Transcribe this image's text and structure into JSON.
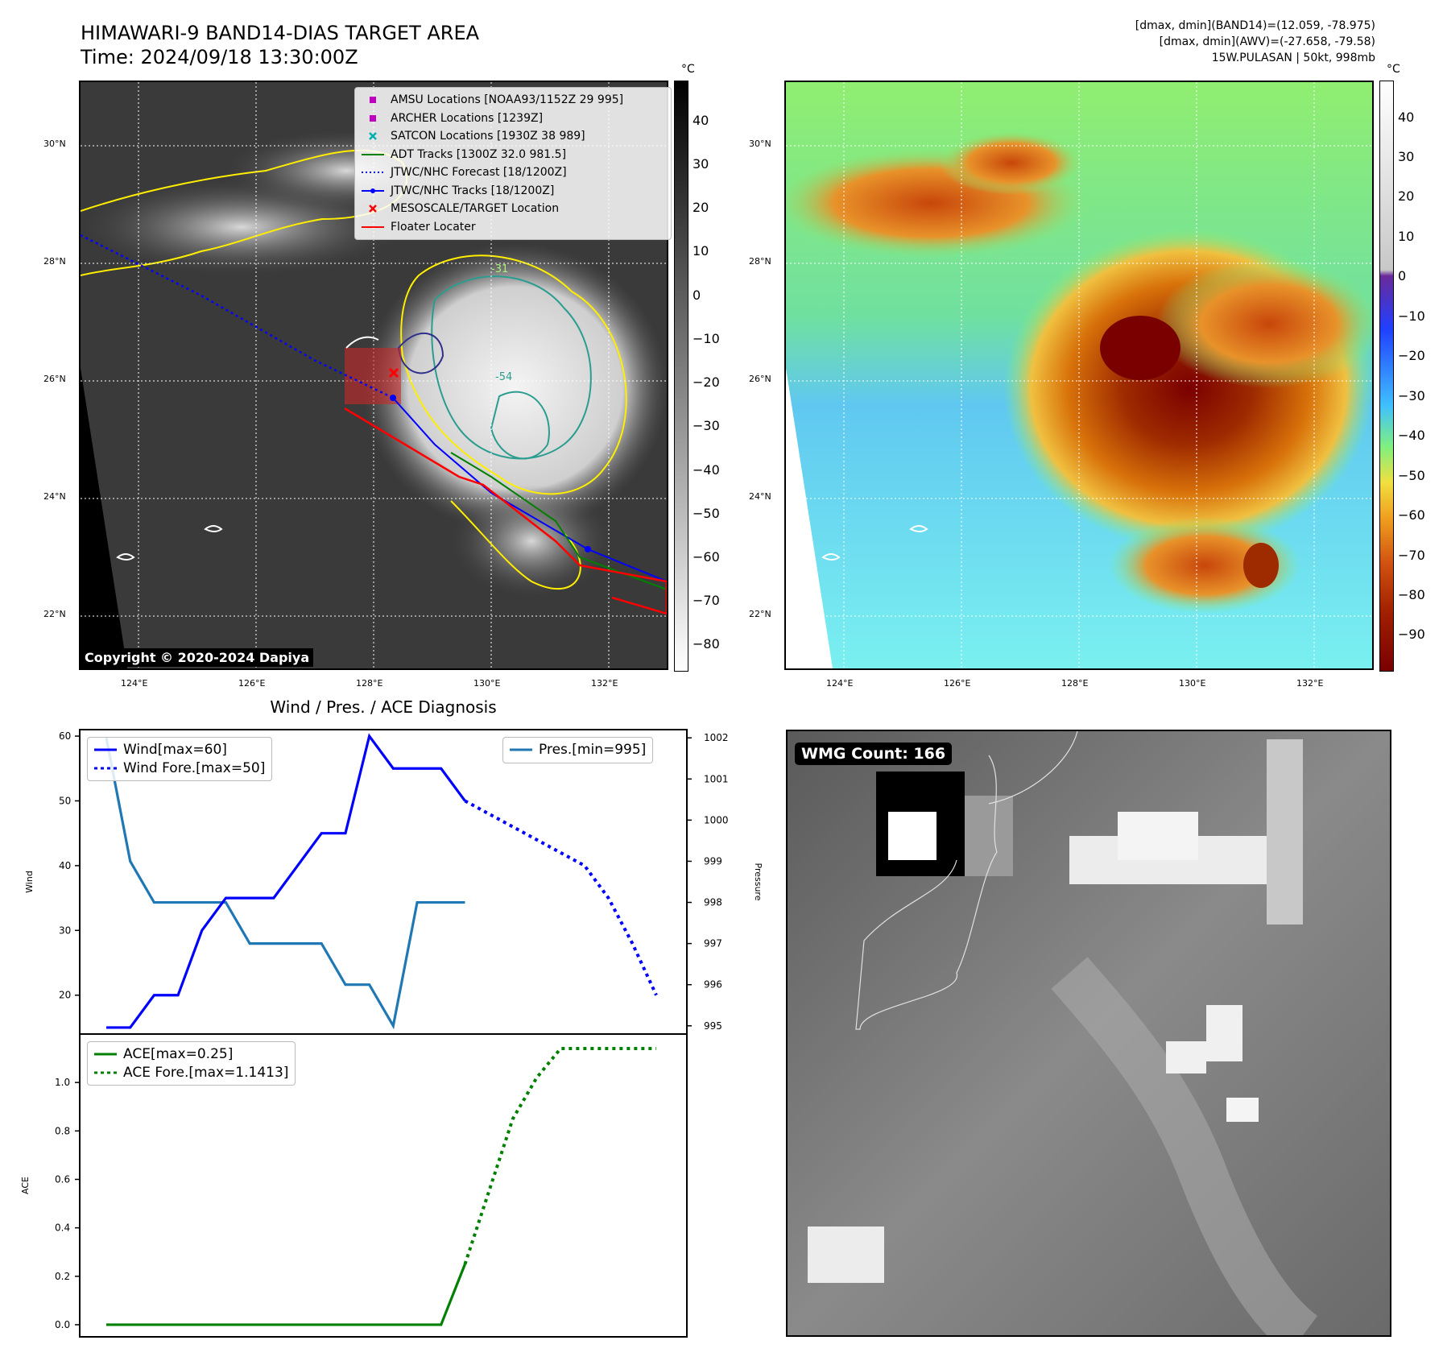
{
  "header": {
    "title_line1": "HIMAWARI-9 BAND14-DIAS TARGET AREA",
    "title_line2": "Time: 2024/09/18 13:30:00Z",
    "info_line1": "[dmax, dmin](BAND14)=(12.059, -78.975)",
    "info_line2": "[dmax, dmin](AWV)=(-27.658, -79.58)",
    "info_line3": "15W.PULASAN | 50kt, 998mb"
  },
  "map": {
    "lat_labels": [
      "30°N",
      "28°N",
      "26°N",
      "24°N",
      "22°N"
    ],
    "lon_labels": [
      "124°E",
      "126°E",
      "128°E",
      "130°E",
      "132°E"
    ],
    "copyright": "Copyright © 2020-2024 Dapiya",
    "contour_label": "-31"
  },
  "legend_ir": [
    {
      "label": "AMSU Locations [NOAA93/1152Z 29 995]",
      "color": "#c000c0",
      "kind": "square"
    },
    {
      "label": "ARCHER Locations [1239Z]",
      "color": "#c000c0",
      "kind": "square"
    },
    {
      "label": "SATCON Locations [1930Z 38 989]",
      "color": "#00b0b0",
      "kind": "x"
    },
    {
      "label": "ADT Tracks [1300Z 32.0 981.5]",
      "color": "#008000",
      "kind": "line"
    },
    {
      "label": "JTWC/NHC Forecast [18/1200Z]",
      "color": "#0000ff",
      "kind": "dotted"
    },
    {
      "label": "JTWC/NHC Tracks [18/1200Z]",
      "color": "#0000ff",
      "kind": "dotline"
    },
    {
      "label": "MESOSCALE/TARGET Location",
      "color": "#ff0000",
      "kind": "x"
    },
    {
      "label": "Floater Locater",
      "color": "#ff0000",
      "kind": "line"
    }
  ],
  "colorbar_ir": {
    "unit": "°C",
    "ticks": [
      "40",
      "30",
      "20",
      "10",
      "0",
      "−10",
      "−20",
      "−30",
      "−40",
      "−50",
      "−60",
      "−70",
      "−80"
    ]
  },
  "colorbar_enh": {
    "unit": "°C",
    "ticks": [
      "40",
      "30",
      "20",
      "10",
      "0",
      "−10",
      "−20",
      "−30",
      "−40",
      "−50",
      "−60",
      "−70",
      "−80",
      "−90"
    ]
  },
  "diag": {
    "title": "Wind / Pres. / ACE Diagnosis",
    "wind_axis_label": "Wind",
    "pres_axis_label": "Pressure",
    "ace_axis_label": "ACE",
    "wind_ticks": [
      "60",
      "50",
      "40",
      "30",
      "20"
    ],
    "pres_ticks": [
      "1002",
      "1001",
      "1000",
      "999",
      "998",
      "997",
      "996",
      "995"
    ],
    "ace_ticks": [
      "1.0",
      "0.8",
      "0.6",
      "0.4",
      "0.2",
      "0.0"
    ],
    "legend_wind": "Wind[max=60]",
    "legend_wind_fore": "Wind Fore.[max=50]",
    "legend_pres": "Pres.[min=995]",
    "legend_ace": "ACE[max=0.25]",
    "legend_ace_fore": "ACE Fore.[max=1.1413]"
  },
  "wmg": {
    "label": "WMG Count: 166"
  },
  "colors": {
    "wind": "#0000ff",
    "pres": "#1f77b4",
    "ace": "#008000",
    "floater": "#ff0000"
  },
  "chart_data": [
    {
      "type": "line",
      "title": "Wind / Pres. / ACE Diagnosis",
      "ylabel": "Wind",
      "ylim": [
        14,
        61
      ],
      "series": [
        {
          "name": "Wind[max=60]",
          "x": [
            0,
            1,
            2,
            3,
            4,
            5,
            6,
            7,
            8,
            9,
            10,
            11,
            12,
            13,
            14,
            15
          ],
          "values": [
            15,
            15,
            20,
            20,
            30,
            35,
            35,
            35,
            40,
            45,
            45,
            60,
            55,
            55,
            55,
            50
          ]
        },
        {
          "name": "Wind Fore.[max=50]",
          "x": [
            15,
            16,
            17,
            18,
            19,
            20,
            21,
            22,
            23
          ],
          "values": [
            50,
            48,
            46,
            44,
            42,
            40,
            35,
            28,
            20
          ]
        }
      ]
    },
    {
      "type": "line",
      "ylabel": "Pressure",
      "ylim": [
        994.8,
        1002.2
      ],
      "series": [
        {
          "name": "Pres.[min=995]",
          "x": [
            0,
            1,
            2,
            3,
            4,
            5,
            6,
            7,
            8,
            9,
            10,
            11,
            12,
            13,
            14,
            15
          ],
          "values": [
            1002,
            999,
            998,
            998,
            998,
            998,
            997,
            997,
            997,
            997,
            996,
            996,
            995,
            998,
            998,
            998
          ]
        }
      ]
    },
    {
      "type": "line",
      "ylabel": "ACE",
      "ylim": [
        -0.05,
        1.2
      ],
      "series": [
        {
          "name": "ACE[max=0.25]",
          "x": [
            0,
            1,
            2,
            3,
            4,
            5,
            6,
            7,
            8,
            9,
            10,
            11,
            12,
            13,
            14,
            15
          ],
          "values": [
            0,
            0,
            0,
            0,
            0,
            0,
            0,
            0,
            0,
            0,
            0,
            0,
            0,
            0,
            0,
            0.25
          ]
        },
        {
          "name": "ACE Fore.[max=1.1413]",
          "x": [
            15,
            16,
            17,
            18,
            19,
            20,
            21,
            22,
            23
          ],
          "values": [
            0.25,
            0.55,
            0.85,
            1.02,
            1.14,
            1.14,
            1.14,
            1.14,
            1.14
          ]
        }
      ]
    }
  ]
}
